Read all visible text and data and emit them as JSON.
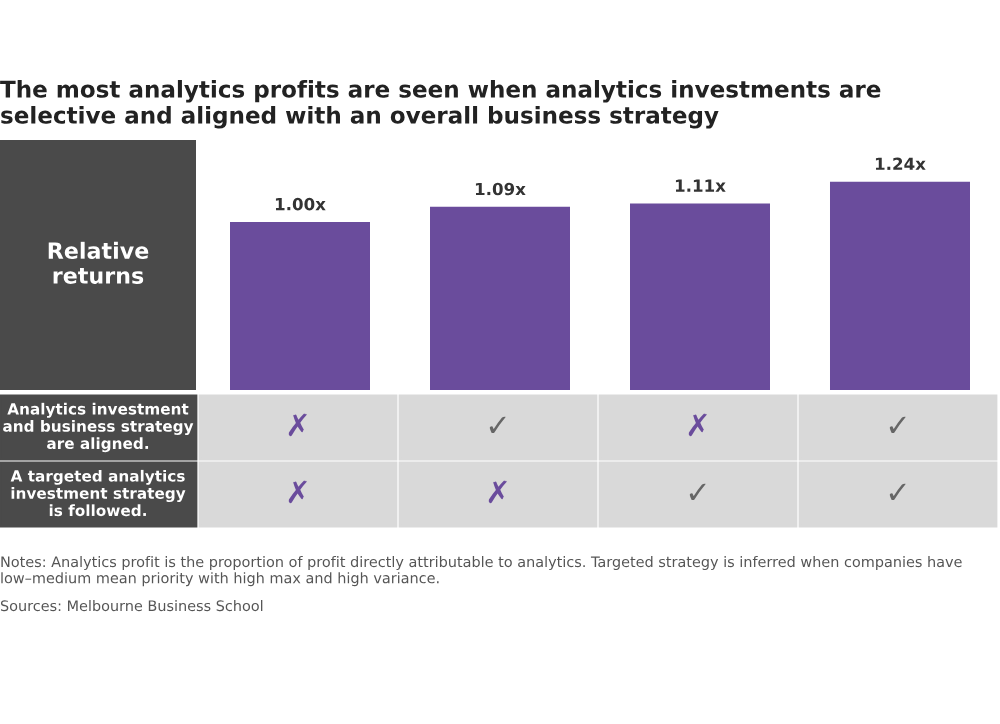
{
  "chart_data": [
    {
      "type": "bar",
      "title": "The most analytics profits are seen when analytics investments are selective and aligned with an overall business strategy",
      "ylabel": "Relative returns",
      "categories": [
        null,
        null,
        null,
        null
      ],
      "values": [
        1.0,
        1.09,
        1.11,
        1.24
      ],
      "color": "#6a4c9c",
      "value_labels": [
        "1.00x",
        "1.09x",
        "1.11x",
        "1.24x"
      ],
      "annotations": [
        "Notes: Analytics profit is the proportion of profit directly attributable to analytics. Targeted strategy is inferred when companies have low–medium mean priority with high max and high variance.",
        "Sources: Melbourne Business School"
      ]
    },
    {
      "type": "other",
      "annotations": [
        "Analytics investment and business strategy are aligned.",
        "✗",
        "✓",
        "✗",
        "✓",
        "A targeted analytics investment strategy is followed.",
        "✗",
        "✗",
        "✓",
        "✓"
      ]
    }
  ]
}
